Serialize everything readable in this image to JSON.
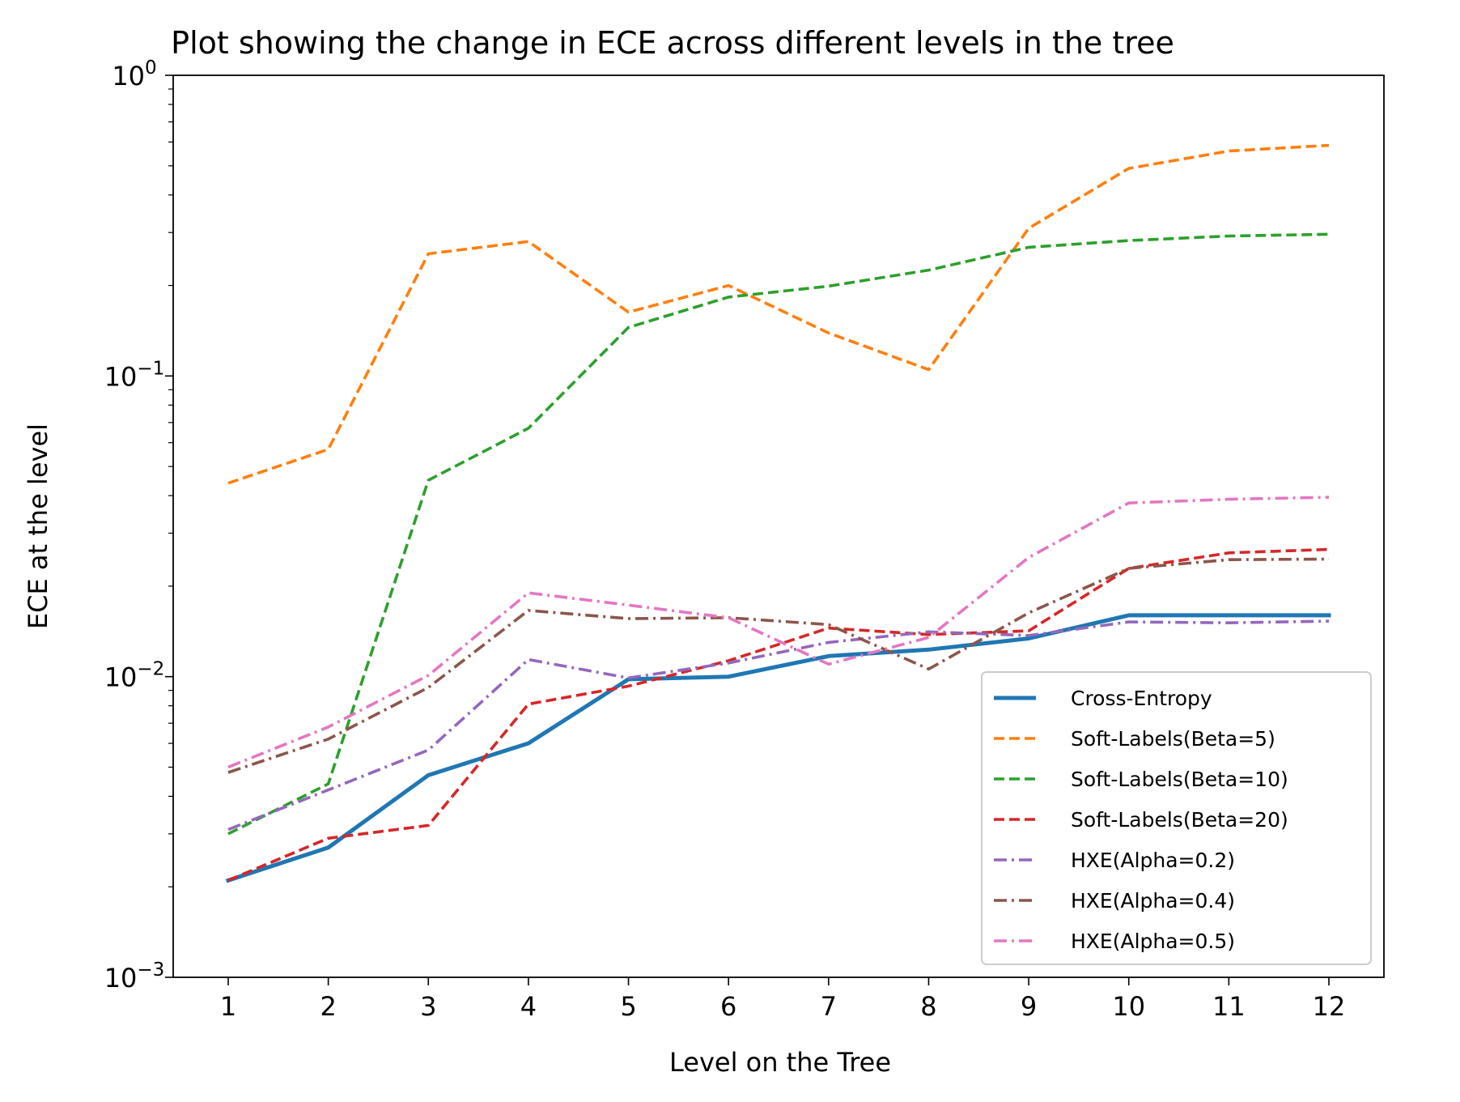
{
  "chart_data": {
    "type": "line",
    "title": "Plot showing the change in ECE across different levels in the tree",
    "xlabel": "Level on the Tree",
    "ylabel": "ECE at the level",
    "yscale": "log",
    "ylim": [
      0.001,
      1
    ],
    "xlim": [
      0.45,
      12.55
    ],
    "x": [
      1,
      2,
      3,
      4,
      5,
      6,
      7,
      8,
      9,
      10,
      11,
      12
    ],
    "x_tick_labels": [
      "1",
      "2",
      "3",
      "4",
      "5",
      "6",
      "7",
      "8",
      "9",
      "10",
      "11",
      "12"
    ],
    "y_ticks": [
      {
        "value": 0.001,
        "base": "10",
        "exp": "−3"
      },
      {
        "value": 0.01,
        "base": "10",
        "exp": "−2"
      },
      {
        "value": 0.1,
        "base": "10",
        "exp": "−1"
      },
      {
        "value": 1,
        "base": "10",
        "exp": "0"
      }
    ],
    "legend_position": "lower-right",
    "series": [
      {
        "name": "Cross-Entropy",
        "color": "#1f77b4",
        "style": "solid",
        "values": [
          0.0021,
          0.0027,
          0.0047,
          0.006,
          0.0098,
          0.01,
          0.0117,
          0.0123,
          0.0134,
          0.016,
          0.016,
          0.016
        ]
      },
      {
        "name": "Soft-Labels(Beta=5)",
        "color": "#ff7f0e",
        "style": "dashed",
        "values": [
          0.044,
          0.057,
          0.255,
          0.28,
          0.163,
          0.2,
          0.139,
          0.105,
          0.31,
          0.49,
          0.56,
          0.585
        ]
      },
      {
        "name": "Soft-Labels(Beta=10)",
        "color": "#2ca02c",
        "style": "dashed",
        "values": [
          0.003,
          0.0044,
          0.045,
          0.067,
          0.145,
          0.183,
          0.199,
          0.225,
          0.268,
          0.282,
          0.292,
          0.296
        ]
      },
      {
        "name": "Soft-Labels(Beta=20)",
        "color": "#d62728",
        "style": "dashed",
        "values": [
          0.0021,
          0.0029,
          0.0032,
          0.0081,
          0.0093,
          0.0113,
          0.0145,
          0.0138,
          0.0142,
          0.0229,
          0.0258,
          0.0265
        ]
      },
      {
        "name": "HXE(Alpha=0.2)",
        "color": "#9467bd",
        "style": "dashdot",
        "values": [
          0.0031,
          0.0042,
          0.0057,
          0.0114,
          0.0099,
          0.0111,
          0.013,
          0.0141,
          0.0137,
          0.0152,
          0.0151,
          0.0153
        ]
      },
      {
        "name": "HXE(Alpha=0.4)",
        "color": "#8c564b",
        "style": "dashdot",
        "values": [
          0.0048,
          0.0062,
          0.0092,
          0.0166,
          0.0156,
          0.0157,
          0.0149,
          0.0106,
          0.0163,
          0.0229,
          0.0245,
          0.0246
        ]
      },
      {
        "name": "HXE(Alpha=0.5)",
        "color": "#e377c2",
        "style": "dashdot",
        "values": [
          0.005,
          0.0068,
          0.0101,
          0.019,
          0.0173,
          0.0157,
          0.011,
          0.0135,
          0.0249,
          0.0378,
          0.0389,
          0.0395
        ]
      }
    ]
  }
}
